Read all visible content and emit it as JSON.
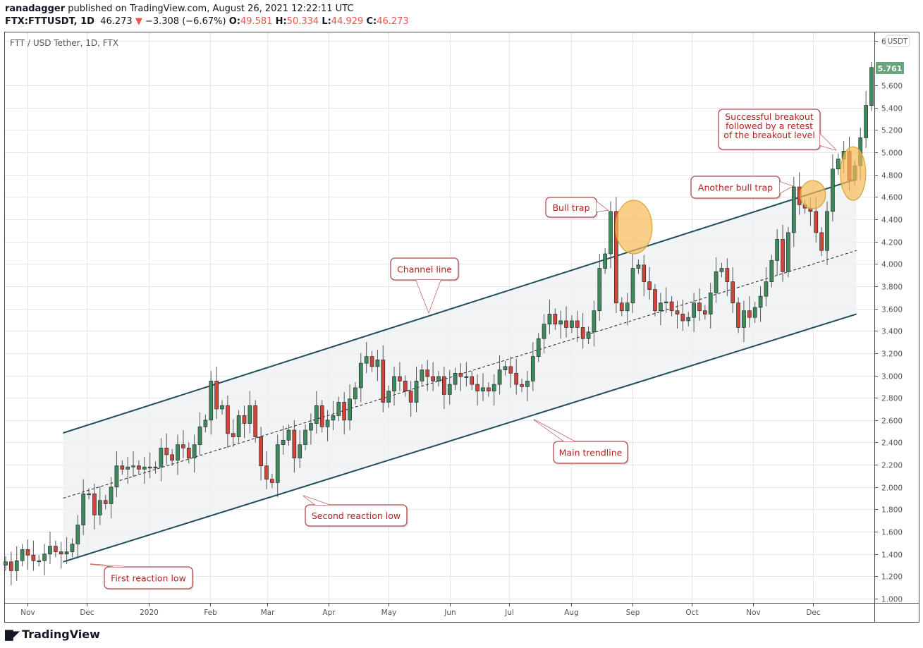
{
  "header": {
    "publisher": "ranadagger",
    "published_text": "published on TradingView.com, August 26, 2021 12:22:11 UTC",
    "symbol": "FTX:FTTUSDT, 1D",
    "last": "46.273",
    "change": "−3.308 (−6.67%)",
    "o_label": "O:",
    "o": "49.581",
    "h_label": "H:",
    "h": "50.334",
    "l_label": "L:",
    "l": "44.929",
    "c_label": "C:",
    "c": "46.273"
  },
  "chart_title": "FTT / USD Tether, 1D, FTX",
  "currency_badge": "USDT",
  "last_price_label": "5.761",
  "colors": {
    "up": "#3d8b5c",
    "down": "#d0443a",
    "outline": "#2b2b2b",
    "channel": "#1f4e5c",
    "ellipse": "#f7b955",
    "callout_text": "#b22222",
    "price_label": "#6aa57e"
  },
  "footer": {
    "brand": "TradingView"
  },
  "chart_data": {
    "type": "candlestick",
    "x_range": [
      "2019-10-21",
      "2021-01-01"
    ],
    "y_range": [
      1.0,
      6.0
    ],
    "y_ticks": [
      "1.000",
      "1.200",
      "1.400",
      "1.600",
      "1.800",
      "2.000",
      "2.200",
      "2.400",
      "2.600",
      "2.800",
      "3.000",
      "3.200",
      "3.400",
      "3.600",
      "3.800",
      "4.000",
      "4.200",
      "4.400",
      "4.600",
      "4.800",
      "5.000",
      "5.200",
      "5.400",
      "5.600",
      "6"
    ],
    "x_ticks": [
      {
        "label": "Nov",
        "date": "2019-11-01"
      },
      {
        "label": "Dec",
        "date": "2019-12-01"
      },
      {
        "label": "2020",
        "date": "2020-01-01"
      },
      {
        "label": "Feb",
        "date": "2020-02-01"
      },
      {
        "label": "Mar",
        "date": "2020-03-01"
      },
      {
        "label": "Apr",
        "date": "2020-04-01"
      },
      {
        "label": "May",
        "date": "2020-05-01"
      },
      {
        "label": "Jun",
        "date": "2020-06-01"
      },
      {
        "label": "Jul",
        "date": "2020-07-01"
      },
      {
        "label": "Aug",
        "date": "2020-08-01"
      },
      {
        "label": "Sep",
        "date": "2020-09-01"
      },
      {
        "label": "Oct",
        "date": "2020-10-01"
      },
      {
        "label": "Nov",
        "date": "2020-11-01"
      },
      {
        "label": "Dec",
        "date": "2020-12-01"
      }
    ],
    "grid": true,
    "closes": [
      1.33,
      1.25,
      1.34,
      1.44,
      1.39,
      1.34,
      1.34,
      1.4,
      1.47,
      1.42,
      1.4,
      1.42,
      1.49,
      1.66,
      1.94,
      1.94,
      1.75,
      1.88,
      1.85,
      2.0,
      2.19,
      2.16,
      2.18,
      2.19,
      2.16,
      2.18,
      2.17,
      2.18,
      2.35,
      2.29,
      2.24,
      2.38,
      2.35,
      2.26,
      2.38,
      2.54,
      2.6,
      2.95,
      2.7,
      2.73,
      2.48,
      2.45,
      2.64,
      2.57,
      2.73,
      2.45,
      2.19,
      2.07,
      2.04,
      2.38,
      2.42,
      2.51,
      2.26,
      2.38,
      2.51,
      2.57,
      2.73,
      2.54,
      2.6,
      2.64,
      2.76,
      2.6,
      2.79,
      2.89,
      3.11,
      3.17,
      3.08,
      3.14,
      2.76,
      2.86,
      2.99,
      2.95,
      2.86,
      2.76,
      2.95,
      3.05,
      2.99,
      2.95,
      2.99,
      2.83,
      2.92,
      3.02,
      2.99,
      2.99,
      2.92,
      2.86,
      2.89,
      2.86,
      2.92,
      3.05,
      3.08,
      3.02,
      2.92,
      2.9,
      2.95,
      3.17,
      3.33,
      3.46,
      3.55,
      3.46,
      3.49,
      3.43,
      3.49,
      3.43,
      3.33,
      3.39,
      3.58,
      3.96,
      4.09,
      4.47,
      3.65,
      3.58,
      3.65,
      3.96,
      3.99,
      3.84,
      3.77,
      3.58,
      3.65,
      3.66,
      3.58,
      3.55,
      3.49,
      3.52,
      3.65,
      3.58,
      3.55,
      3.74,
      3.93,
      3.96,
      3.84,
      3.65,
      3.43,
      3.58,
      3.52,
      3.61,
      3.71,
      3.84,
      4.03,
      4.22,
      3.93,
      4.28,
      4.69,
      4.53,
      4.5,
      4.47,
      4.28,
      4.12,
      4.47,
      4.85,
      4.94,
      5.01,
      4.75,
      4.88,
      5.13,
      5.42,
      5.76
    ],
    "channel": {
      "start_date": "2019-11-19",
      "end_date": "2020-12-23",
      "upper": [
        2.485,
        4.76
      ],
      "middle": [
        1.9,
        4.12
      ],
      "lower": [
        1.33,
        3.55
      ]
    },
    "highlights": [
      {
        "date": "2020-09-01",
        "price": 4.33,
        "name": "bull-trap"
      },
      {
        "date": "2020-12-01",
        "price": 4.62,
        "name": "another-bull-trap"
      },
      {
        "date": "2020-12-22",
        "price": 4.81,
        "name": "retest"
      }
    ],
    "annotations": [
      {
        "lines": [
          "Channel line"
        ]
      },
      {
        "lines": [
          "Bull trap"
        ]
      },
      {
        "lines": [
          "Another bull trap"
        ]
      },
      {
        "lines": [
          "Successful breakout",
          "followed by a retest",
          "of the breakout level"
        ]
      },
      {
        "lines": [
          "Main trendline"
        ]
      },
      {
        "lines": [
          "Second reaction low"
        ]
      },
      {
        "lines": [
          "First reaction low"
        ]
      }
    ]
  }
}
